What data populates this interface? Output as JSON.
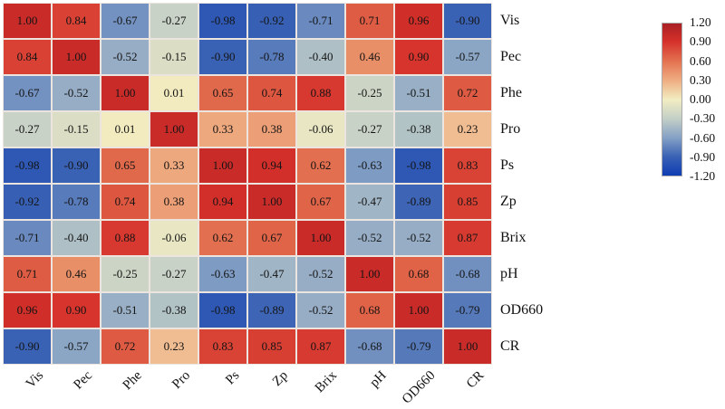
{
  "figure": {
    "background_color": "#ffffff",
    "cell_text_color": "#141414",
    "grid_line_color": "#ece5df"
  },
  "chart_data": {
    "type": "heatmap",
    "description": "Pearson correlation matrix heatmap with diverging red-yellow-blue colormap and right-side colorbar",
    "categories": [
      "Vis",
      "Pec",
      "Phe",
      "Pro",
      "Ps",
      "Zp",
      "Brix",
      "pH",
      "OD660",
      "CR"
    ],
    "row_labels": [
      "Vis",
      "Pec",
      "Phe",
      "Pro",
      "Ps",
      "Zp",
      "Brix",
      "pH",
      "OD660",
      "CR"
    ],
    "col_labels": [
      "Vis",
      "Pec",
      "Phe",
      "Pro",
      "Ps",
      "Zp",
      "Brix",
      "pH",
      "OD660",
      "CR"
    ],
    "matrix": [
      [
        "1.00",
        "0.84",
        "-0.67",
        "-0.27",
        "-0.98",
        "-0.92",
        "-0.71",
        "0.71",
        "0.96",
        "-0.90"
      ],
      [
        "0.84",
        "1.00",
        "-0.52",
        "-0.15",
        "-0.90",
        "-0.78",
        "-0.40",
        "0.46",
        "0.90",
        "-0.57"
      ],
      [
        "-0.67",
        "-0.52",
        "1.00",
        "0.01",
        "0.65",
        "0.74",
        "0.88",
        "-0.25",
        "-0.51",
        "0.72"
      ],
      [
        "-0.27",
        "-0.15",
        "0.01",
        "1.00",
        "0.33",
        "0.38",
        "-0.06",
        "-0.27",
        "-0.38",
        "0.23"
      ],
      [
        "-0.98",
        "-0.90",
        "0.65",
        "0.33",
        "1.00",
        "0.94",
        "0.62",
        "-0.63",
        "-0.98",
        "0.83"
      ],
      [
        "-0.92",
        "-0.78",
        "0.74",
        "0.38",
        "0.94",
        "1.00",
        "0.67",
        "-0.47",
        "-0.89",
        "0.85"
      ],
      [
        "-0.71",
        "-0.40",
        "0.88",
        "-0.06",
        "0.62",
        "0.67",
        "1.00",
        "-0.52",
        "-0.52",
        "0.87"
      ],
      [
        "0.71",
        "0.46",
        "-0.25",
        "-0.27",
        "-0.63",
        "-0.47",
        "-0.52",
        "1.00",
        "0.68",
        "-0.68"
      ],
      [
        "0.96",
        "0.90",
        "-0.51",
        "-0.38",
        "-0.98",
        "-0.89",
        "-0.52",
        "0.68",
        "1.00",
        "-0.79"
      ],
      [
        "-0.90",
        "-0.57",
        "0.72",
        "0.23",
        "0.83",
        "0.85",
        "0.87",
        "-0.68",
        "-0.79",
        "1.00"
      ]
    ],
    "vmin": -1.2,
    "vmax": 1.2,
    "colorbar": {
      "position": "right",
      "ticks": [
        "1.20",
        "0.90",
        "0.60",
        "0.30",
        "0.00",
        "-0.30",
        "-0.60",
        "-0.90",
        "-1.20"
      ]
    },
    "colormap_stops": [
      {
        "value": -1.2,
        "color": "#0e3db3"
      },
      {
        "value": -0.9,
        "color": "#3a62b4"
      },
      {
        "value": -0.6,
        "color": "#85a1c5"
      },
      {
        "value": -0.3,
        "color": "#c3cfc6"
      },
      {
        "value": 0.0,
        "color": "#f2edc2"
      },
      {
        "value": 0.3,
        "color": "#efae83"
      },
      {
        "value": 0.6,
        "color": "#e37351"
      },
      {
        "value": 0.92,
        "color": "#d5302a"
      },
      {
        "value": 1.2,
        "color": "#aa2025"
      }
    ],
    "grid_on": true,
    "legend_position": "right"
  }
}
